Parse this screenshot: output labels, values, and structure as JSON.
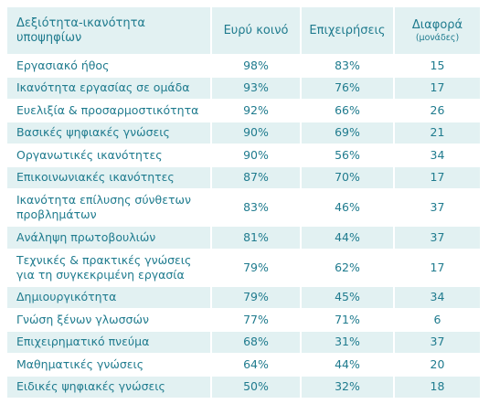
{
  "table": {
    "header": [
      "Δεξιότητα-ικανότητα υποψηφίων",
      "Ευρύ κοινό",
      "Επιχειρήσεις",
      "Διαφορά"
    ],
    "header_note": "(μονάδες)",
    "rows": [
      [
        "Εργασιακό ήθος",
        "98%",
        "83%",
        "15"
      ],
      [
        "Ικανότητα εργασίας σε ομάδα",
        "93%",
        "76%",
        "17"
      ],
      [
        "Ευελιξία & προσαρμοστικότητα",
        "92%",
        "66%",
        "26"
      ],
      [
        "Βασικές ψηφιακές γνώσεις",
        "90%",
        "69%",
        "21"
      ],
      [
        "Οργανωτικές ικανότητες",
        "90%",
        "56%",
        "34"
      ],
      [
        "Επικοινωνιακές ικανότητες",
        "87%",
        "70%",
        "17"
      ],
      [
        "Ικανότητα επίλυσης σύνθετων προβλημάτων",
        "83%",
        "46%",
        "37"
      ],
      [
        "Ανάληψη πρωτοβουλιών",
        "81%",
        "44%",
        "37"
      ],
      [
        "Τεχνικές & πρακτικές γνώσεις για τη συγκεκριμένη εργασία",
        "79%",
        "62%",
        "17"
      ],
      [
        "Δημιουργικότητα",
        "79%",
        "45%",
        "34"
      ],
      [
        "Γνώση ξένων γλωσσών",
        "77%",
        "71%",
        "6"
      ],
      [
        "Επιχειρηματικό πνεύμα",
        "68%",
        "31%",
        "37"
      ],
      [
        "Μαθηματικές γνώσεις",
        "64%",
        "44%",
        "20"
      ],
      [
        "Ειδικές ψηφιακές γνώσεις",
        "50%",
        "32%",
        "18"
      ]
    ]
  }
}
